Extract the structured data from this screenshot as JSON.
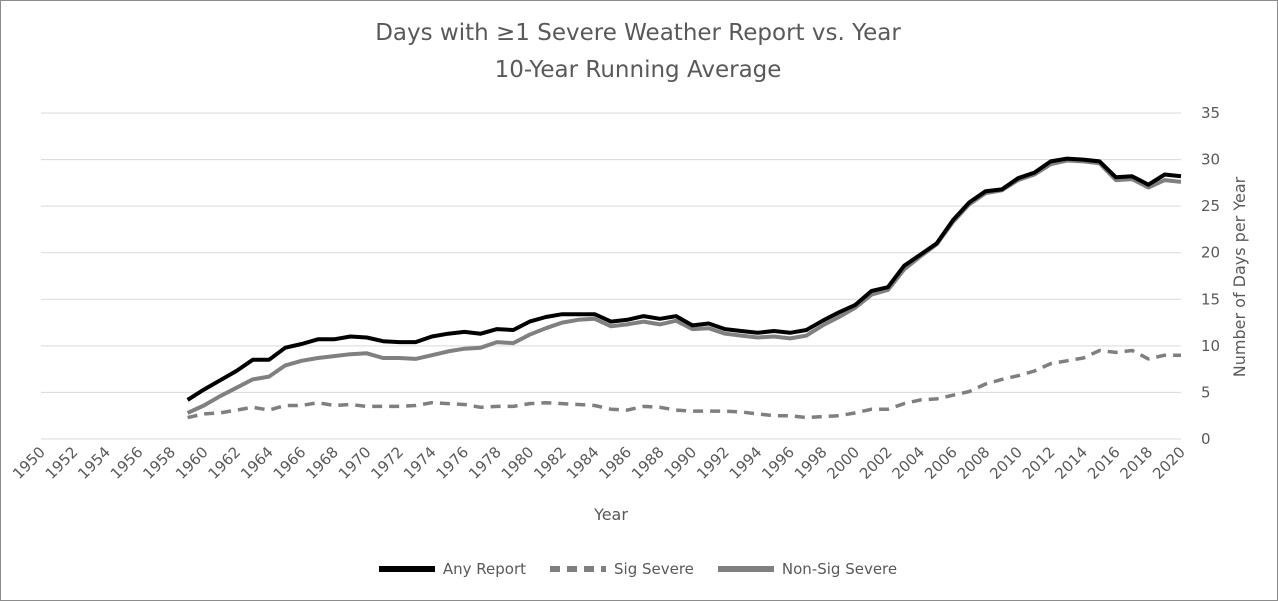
{
  "chart_data": {
    "type": "line",
    "title": "Days with ≥1 Severe Weather Report vs. Year",
    "subtitle": "10-Year Running Average",
    "xlabel": "Year",
    "ylabel": "Number of Days per Year",
    "xlim": [
      1950,
      2020
    ],
    "ylim": [
      0,
      35
    ],
    "x_ticks": [
      1950,
      1952,
      1954,
      1956,
      1958,
      1960,
      1962,
      1964,
      1966,
      1968,
      1970,
      1972,
      1974,
      1976,
      1978,
      1980,
      1982,
      1984,
      1986,
      1988,
      1990,
      1992,
      1994,
      1996,
      1998,
      2000,
      2002,
      2004,
      2006,
      2008,
      2010,
      2012,
      2014,
      2016,
      2018,
      2020
    ],
    "y_ticks": [
      0,
      5,
      10,
      15,
      20,
      25,
      30,
      35
    ],
    "grid": true,
    "y_axis_side": "right",
    "legend_position": "bottom",
    "x": [
      1959,
      1960,
      1961,
      1962,
      1963,
      1964,
      1965,
      1966,
      1967,
      1968,
      1969,
      1970,
      1971,
      1972,
      1973,
      1974,
      1975,
      1976,
      1977,
      1978,
      1979,
      1980,
      1981,
      1982,
      1983,
      1984,
      1985,
      1986,
      1987,
      1988,
      1989,
      1990,
      1991,
      1992,
      1993,
      1994,
      1995,
      1996,
      1997,
      1998,
      1999,
      2000,
      2001,
      2002,
      2003,
      2004,
      2005,
      2006,
      2007,
      2008,
      2009,
      2010,
      2011,
      2012,
      2013,
      2014,
      2015,
      2016,
      2017,
      2018,
      2019,
      2020
    ],
    "series": [
      {
        "name": "Any Report",
        "color": "#000000",
        "dash": "solid",
        "values": [
          4.2,
          5.3,
          6.3,
          7.3,
          8.5,
          8.5,
          9.8,
          10.2,
          10.7,
          10.7,
          11.0,
          10.9,
          10.5,
          10.4,
          10.4,
          11.0,
          11.3,
          11.5,
          11.3,
          11.8,
          11.7,
          12.6,
          13.1,
          13.4,
          13.4,
          13.4,
          12.6,
          12.8,
          13.2,
          12.9,
          13.2,
          12.2,
          12.4,
          11.8,
          11.6,
          11.4,
          11.6,
          11.4,
          11.7,
          12.7,
          13.6,
          14.4,
          15.9,
          16.3,
          18.6,
          19.8,
          21.0,
          23.5,
          25.4,
          26.6,
          26.8,
          28.0,
          28.6,
          29.8,
          30.1,
          30.0,
          29.8,
          28.1,
          28.2,
          27.3,
          28.4,
          28.2
        ]
      },
      {
        "name": "Sig Severe",
        "color": "#7f7f7f",
        "dash": "dashed",
        "values": [
          2.3,
          2.7,
          2.8,
          3.1,
          3.4,
          3.1,
          3.6,
          3.6,
          3.9,
          3.6,
          3.7,
          3.5,
          3.5,
          3.5,
          3.6,
          3.9,
          3.8,
          3.7,
          3.4,
          3.5,
          3.5,
          3.8,
          3.9,
          3.8,
          3.7,
          3.6,
          3.2,
          3.1,
          3.5,
          3.4,
          3.1,
          3.0,
          3.0,
          3.0,
          2.9,
          2.7,
          2.5,
          2.5,
          2.3,
          2.4,
          2.5,
          2.8,
          3.2,
          3.2,
          3.8,
          4.2,
          4.3,
          4.7,
          5.1,
          5.9,
          6.4,
          6.8,
          7.3,
          8.1,
          8.4,
          8.7,
          9.5,
          9.3,
          9.5,
          8.6,
          9.0,
          9.0
        ]
      },
      {
        "name": "Non-Sig Severe",
        "color": "#808080",
        "dash": "solid",
        "values": [
          2.8,
          3.6,
          4.6,
          5.5,
          6.4,
          6.7,
          7.9,
          8.4,
          8.7,
          8.9,
          9.1,
          9.2,
          8.7,
          8.7,
          8.6,
          9.0,
          9.4,
          9.7,
          9.8,
          10.4,
          10.3,
          11.2,
          11.9,
          12.5,
          12.8,
          12.9,
          12.1,
          12.3,
          12.6,
          12.3,
          12.7,
          11.8,
          11.9,
          11.3,
          11.1,
          10.9,
          11.0,
          10.8,
          11.1,
          12.2,
          13.1,
          14.1,
          15.5,
          16.0,
          18.2,
          19.6,
          20.9,
          23.3,
          25.2,
          26.4,
          26.7,
          27.8,
          28.4,
          29.5,
          29.9,
          29.8,
          29.6,
          27.8,
          27.9,
          27.0,
          27.8,
          27.6
        ]
      }
    ]
  }
}
